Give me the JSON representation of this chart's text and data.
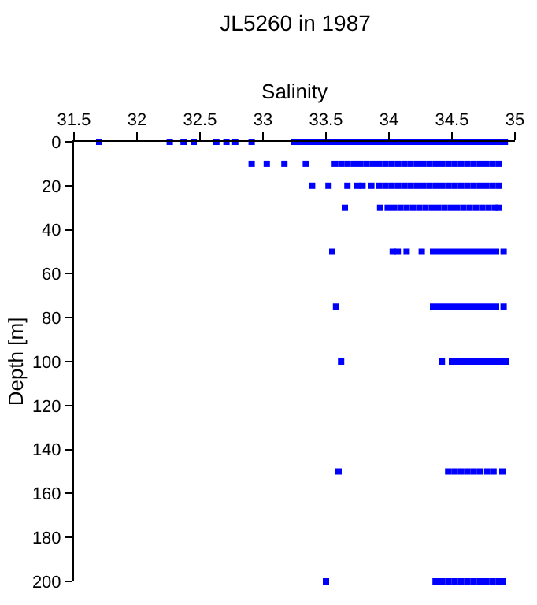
{
  "chart_data": {
    "type": "scatter",
    "title": "JL5260 in 1987",
    "xlabel": "Salinity",
    "ylabel": "Depth [m]",
    "xlim": [
      31.5,
      35
    ],
    "xticks": [
      31.5,
      32,
      32.5,
      33,
      33.5,
      34,
      34.5,
      35
    ],
    "ylim": [
      200,
      0
    ],
    "yticks": [
      0,
      20,
      40,
      60,
      80,
      100,
      120,
      140,
      160,
      180,
      200
    ],
    "marker": "square",
    "series": [
      {
        "color": "#0000ff",
        "x": [
          31.7,
          32.26,
          32.37,
          32.45,
          32.63,
          32.71,
          32.78,
          32.91,
          33.25,
          33.3,
          33.35,
          33.4,
          33.45,
          33.5,
          33.55,
          33.6,
          33.65,
          33.7,
          33.75,
          33.8,
          33.85,
          33.9,
          33.95,
          34,
          34.05,
          34.1,
          34.15,
          34.2,
          34.25,
          34.3,
          34.35,
          34.4,
          34.45,
          34.5,
          34.55,
          34.6,
          34.65,
          34.7,
          34.75,
          34.8,
          34.85,
          34.9,
          34.92
        ],
        "values": [
          0,
          0,
          0,
          0,
          0,
          0,
          0,
          0,
          0,
          0,
          0,
          0,
          0,
          0,
          0,
          0,
          0,
          0,
          0,
          0,
          0,
          0,
          0,
          0,
          0,
          0,
          0,
          0,
          0,
          0,
          0,
          0,
          0,
          0,
          0,
          0,
          0,
          0,
          0,
          0,
          0,
          0,
          0
        ]
      },
      {
        "color": "#0000ff",
        "x": [
          32.91,
          33.03,
          33.17,
          33.34,
          33.57,
          33.62,
          33.67,
          33.72,
          33.77,
          33.82,
          33.87,
          33.92,
          33.97,
          34.02,
          34.07,
          34.12,
          34.17,
          34.22,
          34.27,
          34.32,
          34.37,
          34.42,
          34.47,
          34.52,
          34.57,
          34.62,
          34.67,
          34.72,
          34.77,
          34.82,
          34.87
        ],
        "values": [
          10,
          10,
          10,
          10,
          10,
          10,
          10,
          10,
          10,
          10,
          10,
          10,
          10,
          10,
          10,
          10,
          10,
          10,
          10,
          10,
          10,
          10,
          10,
          10,
          10,
          10,
          10,
          10,
          10,
          10,
          10
        ]
      },
      {
        "color": "#0000ff",
        "x": [
          33.39,
          33.52,
          33.67,
          33.75,
          33.79,
          33.86,
          33.92,
          33.97,
          34.02,
          34.07,
          34.12,
          34.17,
          34.22,
          34.27,
          34.32,
          34.37,
          34.42,
          34.47,
          34.52,
          34.57,
          34.62,
          34.67,
          34.72,
          34.77,
          34.82,
          34.87
        ],
        "values": [
          20,
          20,
          20,
          20,
          20,
          20,
          20,
          20,
          20,
          20,
          20,
          20,
          20,
          20,
          20,
          20,
          20,
          20,
          20,
          20,
          20,
          20,
          20,
          20,
          20,
          20
        ]
      },
      {
        "color": "#0000ff",
        "x": [
          33.65,
          33.93,
          33.99,
          34.04,
          34.09,
          34.14,
          34.19,
          34.24,
          34.29,
          34.34,
          34.39,
          34.44,
          34.49,
          34.54,
          34.59,
          34.64,
          34.69,
          34.74,
          34.79,
          34.84,
          34.87
        ],
        "values": [
          30,
          30,
          30,
          30,
          30,
          30,
          30,
          30,
          30,
          30,
          30,
          30,
          30,
          30,
          30,
          30,
          30,
          30,
          30,
          30,
          30
        ]
      },
      {
        "color": "#0000ff",
        "x": [
          33.55,
          34.03,
          34.07,
          34.14,
          34.26,
          34.35,
          34.4,
          34.45,
          34.5,
          34.55,
          34.6,
          34.65,
          34.7,
          34.75,
          34.8,
          34.85,
          34.91
        ],
        "values": [
          50,
          50,
          50,
          50,
          50,
          50,
          50,
          50,
          50,
          50,
          50,
          50,
          50,
          50,
          50,
          50,
          50
        ]
      },
      {
        "color": "#0000ff",
        "x": [
          33.58,
          34.35,
          34.4,
          34.45,
          34.5,
          34.55,
          34.6,
          34.65,
          34.7,
          34.75,
          34.8,
          34.85,
          34.91
        ],
        "values": [
          75,
          75,
          75,
          75,
          75,
          75,
          75,
          75,
          75,
          75,
          75,
          75,
          75
        ]
      },
      {
        "color": "#0000ff",
        "x": [
          33.62,
          34.42,
          34.5,
          34.55,
          34.6,
          34.65,
          34.7,
          34.75,
          34.8,
          34.85,
          34.9,
          34.93
        ],
        "values": [
          100,
          100,
          100,
          100,
          100,
          100,
          100,
          100,
          100,
          100,
          100,
          100
        ]
      },
      {
        "color": "#0000ff",
        "x": [
          33.6,
          34.47,
          34.52,
          34.57,
          34.62,
          34.67,
          34.72,
          34.78,
          34.83,
          34.9
        ],
        "values": [
          150,
          150,
          150,
          150,
          150,
          150,
          150,
          150,
          150,
          150
        ]
      },
      {
        "color": "#0000ff",
        "x": [
          33.5,
          34.37,
          34.42,
          34.47,
          34.52,
          34.57,
          34.62,
          34.67,
          34.72,
          34.77,
          34.82,
          34.87,
          34.9
        ],
        "values": [
          200,
          200,
          200,
          200,
          200,
          200,
          200,
          200,
          200,
          200,
          200,
          200,
          200
        ]
      }
    ]
  }
}
